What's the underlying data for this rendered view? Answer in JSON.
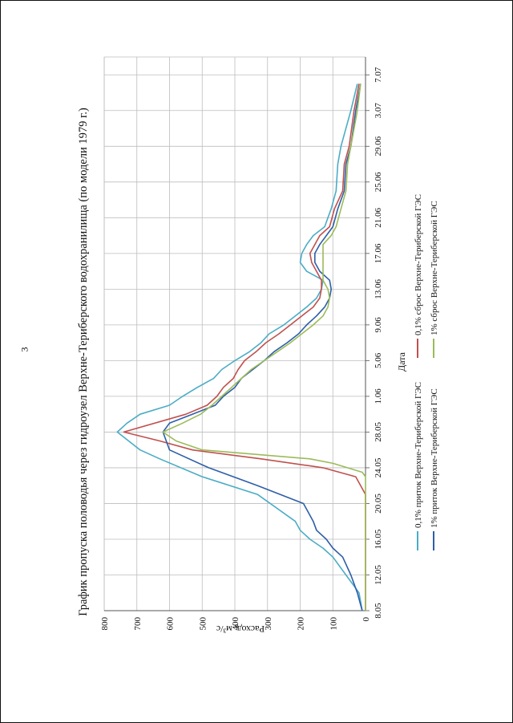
{
  "page": {
    "number": "3"
  },
  "chart_data": {
    "type": "line",
    "title": "График пропуска половодья через гидроузел Верхне-Териберского водохранилища (по модели 1979 г.)",
    "xlabel": "Дата",
    "ylabel": "Расход, м³/с",
    "ylim": [
      0,
      800
    ],
    "yticks": [
      0,
      100,
      200,
      300,
      400,
      500,
      600,
      700,
      800
    ],
    "xlim": [
      0,
      62
    ],
    "xtick_labels": [
      "8.05",
      "12.05",
      "16.05",
      "20.05",
      "24.05",
      "28.05",
      "1.06",
      "5.06",
      "9.06",
      "13.06",
      "17.06",
      "21.06",
      "25.06",
      "29.06",
      "3.07",
      "7.07"
    ],
    "grid": true,
    "legend_position": "bottom",
    "x_note": "x = day index, 0 = 8.05, 4 days per labelled tick",
    "series": [
      {
        "name": "0,1% приток Верхне-Териберской ГЭС",
        "color": "#4bacc6",
        "points": [
          [
            0,
            10
          ],
          [
            2,
            20
          ],
          [
            4,
            60
          ],
          [
            6,
            100
          ],
          [
            7,
            130
          ],
          [
            8,
            170
          ],
          [
            9,
            200
          ],
          [
            10,
            215
          ],
          [
            13,
            330
          ],
          [
            15,
            500
          ],
          [
            17,
            630
          ],
          [
            18,
            690
          ],
          [
            20,
            760
          ],
          [
            21,
            730
          ],
          [
            22,
            690
          ],
          [
            23,
            600
          ],
          [
            24,
            560
          ],
          [
            25,
            515
          ],
          [
            26,
            465
          ],
          [
            27,
            440
          ],
          [
            28,
            400
          ],
          [
            29,
            355
          ],
          [
            30,
            320
          ],
          [
            31,
            295
          ],
          [
            32,
            250
          ],
          [
            33,
            215
          ],
          [
            34,
            180
          ],
          [
            35,
            150
          ],
          [
            36,
            135
          ],
          [
            37,
            130
          ],
          [
            38,
            180
          ],
          [
            39,
            200
          ],
          [
            40,
            195
          ],
          [
            41,
            180
          ],
          [
            42,
            160
          ],
          [
            43,
            125
          ],
          [
            44,
            115
          ],
          [
            45,
            105
          ],
          [
            47,
            90
          ],
          [
            50,
            85
          ],
          [
            52,
            75
          ],
          [
            56,
            45
          ],
          [
            59,
            25
          ]
        ]
      },
      {
        "name": "0,1% сброс Верхне-Териберской ГЭС",
        "color": "#c0504d",
        "points": [
          [
            0,
            0
          ],
          [
            13,
            0
          ],
          [
            15,
            30
          ],
          [
            16,
            130
          ],
          [
            17,
            320
          ],
          [
            18,
            530
          ],
          [
            19,
            630
          ],
          [
            20,
            740
          ],
          [
            22,
            550
          ],
          [
            23,
            485
          ],
          [
            24,
            455
          ],
          [
            25,
            435
          ],
          [
            26,
            405
          ],
          [
            27,
            390
          ],
          [
            28,
            370
          ],
          [
            29,
            335
          ],
          [
            30,
            305
          ],
          [
            31,
            265
          ],
          [
            32,
            230
          ],
          [
            33,
            195
          ],
          [
            34,
            160
          ],
          [
            35,
            140
          ],
          [
            36,
            135
          ],
          [
            37,
            135
          ],
          [
            38,
            150
          ],
          [
            39,
            165
          ],
          [
            40,
            170
          ],
          [
            41,
            155
          ],
          [
            42,
            140
          ],
          [
            43,
            110
          ],
          [
            45,
            95
          ],
          [
            47,
            70
          ],
          [
            50,
            65
          ],
          [
            52,
            50
          ],
          [
            56,
            35
          ],
          [
            59,
            20
          ]
        ]
      },
      {
        "name": "1% приток Верхне-Териберской ГЭС",
        "color": "#2e5ea8",
        "points": [
          [
            0,
            10
          ],
          [
            2,
            25
          ],
          [
            4,
            45
          ],
          [
            6,
            70
          ],
          [
            7,
            100
          ],
          [
            8,
            120
          ],
          [
            9,
            150
          ],
          [
            10,
            160
          ],
          [
            12,
            190
          ],
          [
            14,
            330
          ],
          [
            16,
            480
          ],
          [
            18,
            600
          ],
          [
            19,
            610
          ],
          [
            20,
            620
          ],
          [
            21,
            600
          ],
          [
            22,
            530
          ],
          [
            23,
            460
          ],
          [
            24,
            435
          ],
          [
            25,
            400
          ],
          [
            26,
            380
          ],
          [
            27,
            345
          ],
          [
            28,
            310
          ],
          [
            29,
            280
          ],
          [
            30,
            240
          ],
          [
            31,
            205
          ],
          [
            32,
            180
          ],
          [
            33,
            150
          ],
          [
            34,
            125
          ],
          [
            35,
            110
          ],
          [
            36,
            105
          ],
          [
            37,
            110
          ],
          [
            38,
            140
          ],
          [
            39,
            155
          ],
          [
            40,
            155
          ],
          [
            41,
            140
          ],
          [
            42,
            120
          ],
          [
            43,
            100
          ],
          [
            45,
            85
          ],
          [
            47,
            65
          ],
          [
            50,
            60
          ],
          [
            52,
            45
          ],
          [
            56,
            30
          ],
          [
            59,
            15
          ]
        ]
      },
      {
        "name": "1% сброс Верхне-Териберской ГЭС",
        "color": "#9bbb59",
        "points": [
          [
            0,
            0
          ],
          [
            15,
            0
          ],
          [
            15.5,
            10
          ],
          [
            16.5,
            100
          ],
          [
            17,
            170
          ],
          [
            18,
            500
          ],
          [
            19,
            580
          ],
          [
            20,
            620
          ],
          [
            21,
            560
          ],
          [
            22,
            505
          ],
          [
            23,
            470
          ],
          [
            24,
            440
          ],
          [
            25,
            410
          ],
          [
            26,
            380
          ],
          [
            27,
            350
          ],
          [
            28,
            310
          ],
          [
            29,
            270
          ],
          [
            30,
            230
          ],
          [
            31,
            195
          ],
          [
            32,
            160
          ],
          [
            33,
            130
          ],
          [
            34,
            115
          ],
          [
            35,
            110
          ],
          [
            36,
            115
          ],
          [
            37,
            130
          ],
          [
            39,
            130
          ],
          [
            41,
            130
          ],
          [
            42,
            105
          ],
          [
            43,
            90
          ],
          [
            45,
            75
          ],
          [
            47,
            60
          ],
          [
            50,
            55
          ],
          [
            52,
            45
          ],
          [
            56,
            25
          ],
          [
            59,
            15
          ]
        ]
      }
    ]
  }
}
